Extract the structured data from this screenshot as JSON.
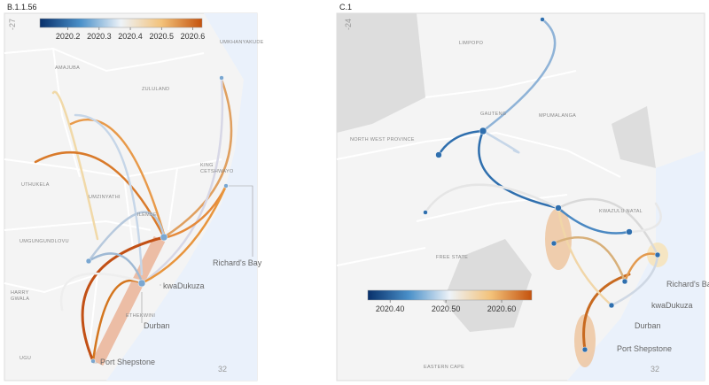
{
  "panels": [
    {
      "title": "B.1.1.56",
      "colorbar": {
        "range": [
          2020.11,
          2020.63
        ],
        "ticks": [
          2020.2,
          2020.3,
          2020.4,
          2020.5,
          2020.6
        ]
      },
      "axis_labels": [
        "-27",
        "32"
      ],
      "regions": [
        "UMKHANYAKUDE",
        "AMAJUBA",
        "ZULULAND",
        [
          "KING",
          "CETSHWAYO"
        ],
        "UTHUKELA",
        "UMZINYATHI",
        "ILEMBE",
        "UMGUNGUNDLOVU",
        [
          "HARRY",
          "GWALA"
        ],
        "UGU",
        "ETHEKWINI"
      ],
      "cities": [
        "Richard's Bay",
        "kwaDukuza",
        "Durban",
        "Port Shepstone"
      ]
    },
    {
      "title": "C.1",
      "colorbar": {
        "range": [
          2020.36,
          2020.654
        ],
        "ticks": [
          {
            "value": 2020.4,
            "label": "2020.40"
          },
          {
            "value": 2020.5,
            "label": "2020.50"
          },
          {
            "value": 2020.6,
            "label": "2020.60"
          }
        ]
      },
      "axis_labels": [
        "-24",
        "32"
      ],
      "regions": [
        "LIMPOPO",
        "GAUTENG",
        "MPUMALANGA",
        "NORTH WEST PROVINCE",
        "KWAZULU NATAL",
        "FREE STATE",
        "EASTERN CAPE"
      ],
      "cities": [
        "Richard's Bay",
        "kwaDukuza",
        "Durban",
        "Port Shepstone"
      ]
    }
  ]
}
